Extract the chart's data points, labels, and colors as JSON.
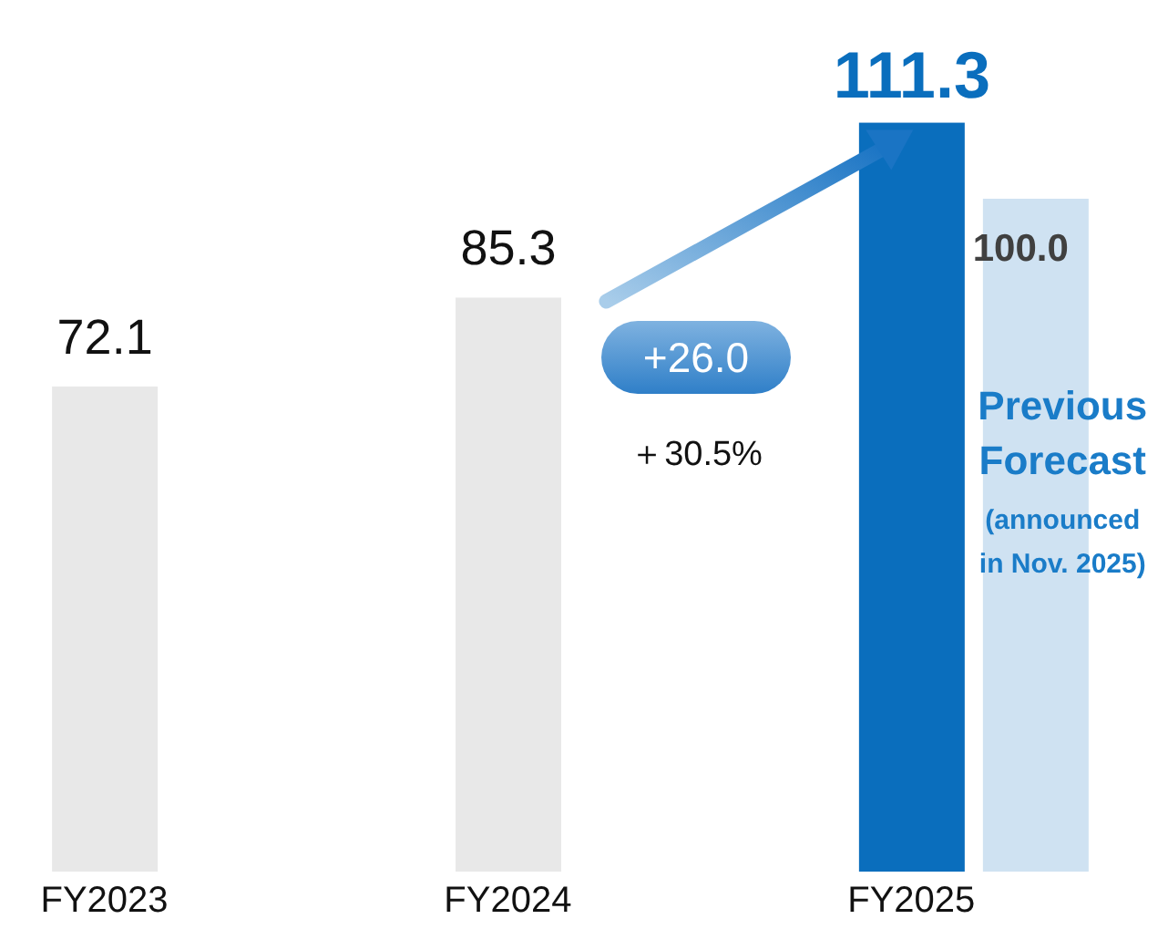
{
  "chart_data": {
    "type": "bar",
    "categories": [
      "FY2023",
      "FY2024",
      "FY2025"
    ],
    "series": [
      {
        "values": [
          72.1,
          85.3,
          111.3
        ],
        "colors": [
          "#e8e8e8",
          "#e8e8e8",
          "#0a6ebd"
        ],
        "value_labels": [
          "72.1",
          "85.3",
          "111.3"
        ]
      },
      {
        "name": "Previous Forecast",
        "color": "#cfe2f2",
        "values": [
          null,
          null,
          100.0
        ],
        "value_labels": [
          null,
          null,
          "100.0"
        ]
      }
    ],
    "annotations": [
      "+26.0",
      "＋30.5%",
      "(announced in Nov. 2025)"
    ],
    "tick_labels": "x"
  }
}
